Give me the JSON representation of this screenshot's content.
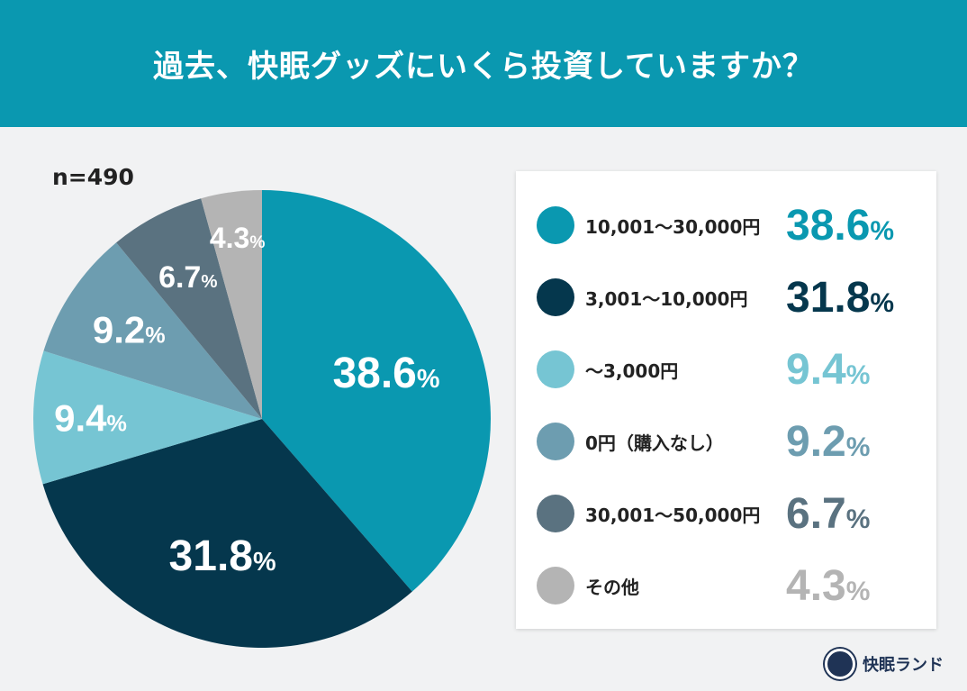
{
  "title": "過去、快眠グッズにいくら投資していますか？",
  "sample": "n=490",
  "brand": "快眠ランド",
  "chart_data": {
    "type": "pie",
    "title": "過去、快眠グッズにいくら投資していますか？",
    "start": "top-clockwise",
    "legend_placement": "right",
    "categories": [
      "10,001〜30,000円",
      "3,001〜10,000円",
      "〜3,000円",
      "0円（購入なし）",
      "30,001〜50,000円",
      "その他"
    ],
    "values": [
      38.6,
      31.8,
      9.4,
      9.2,
      6.7,
      4.3
    ],
    "labels": [
      "38.6",
      "31.8",
      "9.4",
      "9.2",
      "6.7",
      "4.3"
    ],
    "unit": "%",
    "colors": [
      "#0a98b0",
      "#05374d",
      "#76c5d3",
      "#6d9db0",
      "#5a7280",
      "#b4b4b4"
    ]
  }
}
